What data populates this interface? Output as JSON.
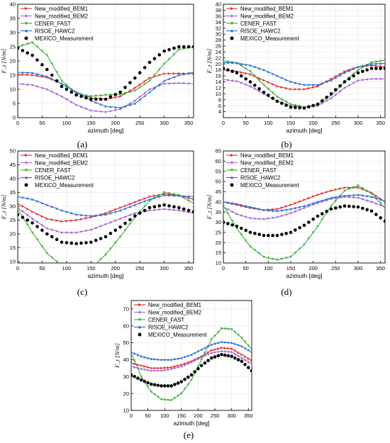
{
  "figure": {
    "panel_labels": [
      "(a)",
      "(b)",
      "(c)",
      "(d)",
      "(e)"
    ],
    "legend_entries": [
      "New_modified_BEM1",
      "New_modified_BEM2",
      "CENER_FAST",
      "RISOE_HAWC2",
      "MEXICO_Measurement"
    ],
    "series_colors": {
      "New_modified_BEM1": "#e8231f",
      "New_modified_BEM2": "#a468dc",
      "CENER_FAST": "#3cae3a",
      "RISOE_HAWC2": "#2e6fd6",
      "MEXICO_Measurement": "#000000"
    },
    "series_markers": {
      "New_modified_BEM1": "triangle-right",
      "New_modified_BEM2": "diamond",
      "CENER_FAST": "triangle-down",
      "RISOE_HAWC2": "triangle-up",
      "MEXICO_Measurement": "circle"
    }
  },
  "chart_data": [
    {
      "panel": "(a)",
      "type": "line",
      "xlabel": "azimuth [deg]",
      "ylabel": "F_t [N/m]",
      "xlim": [
        0,
        360
      ],
      "ylim": [
        0,
        40
      ],
      "xticks": [
        0,
        50,
        100,
        150,
        200,
        250,
        300,
        350
      ],
      "yticks": [
        0,
        5,
        10,
        15,
        20,
        25,
        30,
        35,
        40
      ],
      "legend": "top-left",
      "x": [
        0,
        30,
        60,
        90,
        120,
        150,
        180,
        210,
        240,
        270,
        300,
        330,
        360
      ],
      "series": [
        {
          "name": "New_modified_BEM1",
          "values": [
            15.2,
            15.0,
            14.2,
            12.0,
            9.0,
            7.0,
            6.5,
            7.5,
            10.5,
            14.0,
            15.5,
            15.6,
            15.5
          ]
        },
        {
          "name": "New_modified_BEM2",
          "values": [
            12.0,
            11.5,
            10.0,
            7.5,
            4.5,
            2.5,
            2.0,
            3.0,
            6.0,
            10.0,
            12.0,
            12.2,
            12.0
          ]
        },
        {
          "name": "CENER_FAST",
          "values": [
            25.0,
            26.5,
            22.0,
            13.0,
            8.5,
            7.5,
            8.0,
            8.2,
            9.5,
            13.0,
            19.0,
            24.0,
            25.0
          ]
        },
        {
          "name": "RISOE_HAWC2",
          "values": [
            16.0,
            15.8,
            14.5,
            12.0,
            9.0,
            6.0,
            4.0,
            3.5,
            5.0,
            9.0,
            13.0,
            15.0,
            16.0
          ]
        },
        {
          "name": "MEXICO_Measurement",
          "values": [
            24.5,
            22.0,
            17.0,
            11.0,
            8.0,
            6.5,
            6.5,
            9.0,
            14.0,
            19.5,
            23.5,
            25.0,
            25.0
          ]
        }
      ]
    },
    {
      "panel": "(b)",
      "type": "line",
      "xlabel": "azimuth [deg]",
      "ylabel": "F_t [N/m]",
      "xlim": [
        0,
        360
      ],
      "ylim": [
        2,
        40
      ],
      "xticks": [
        0,
        50,
        100,
        150,
        200,
        250,
        300,
        350
      ],
      "yticks": [
        4,
        6,
        8,
        10,
        12,
        14,
        16,
        18,
        20,
        22,
        24,
        26,
        28,
        30,
        32,
        34,
        36,
        38,
        40
      ],
      "legend": "top-left",
      "x": [
        0,
        30,
        60,
        90,
        120,
        150,
        180,
        210,
        240,
        270,
        300,
        330,
        360
      ],
      "series": [
        {
          "name": "New_modified_BEM1",
          "values": [
            18.0,
            17.5,
            16.5,
            14.5,
            12.5,
            11.5,
            11.5,
            12.5,
            15.0,
            17.5,
            19.0,
            19.5,
            19.0
          ]
        },
        {
          "name": "New_modified_BEM2",
          "values": [
            14.8,
            14.2,
            12.5,
            10.0,
            7.5,
            6.0,
            5.5,
            6.0,
            8.5,
            12.0,
            14.5,
            15.0,
            15.0
          ]
        },
        {
          "name": "CENER_FAST",
          "values": [
            21.0,
            20.3,
            17.5,
            13.0,
            9.0,
            6.5,
            5.5,
            6.5,
            9.5,
            14.0,
            18.0,
            20.5,
            21.2
          ]
        },
        {
          "name": "RISOE_HAWC2",
          "values": [
            20.5,
            20.3,
            19.5,
            18.0,
            16.0,
            14.0,
            13.0,
            13.0,
            14.5,
            17.0,
            19.0,
            20.0,
            20.2
          ]
        },
        {
          "name": "MEXICO_Measurement",
          "values": [
            18.5,
            17.0,
            14.0,
            10.5,
            7.5,
            5.5,
            5.2,
            6.5,
            10.0,
            14.0,
            17.0,
            18.5,
            18.5
          ]
        }
      ]
    },
    {
      "panel": "(c)",
      "type": "line",
      "xlabel": "azimuth [deg]",
      "ylabel": "F_t [N/m]",
      "xlim": [
        0,
        360
      ],
      "ylim": [
        9.5,
        50
      ],
      "xticks": [
        0,
        50,
        100,
        150,
        200,
        250,
        300,
        350
      ],
      "yticks": [
        10,
        15,
        20,
        25,
        30,
        35,
        40,
        45,
        50
      ],
      "legend": "top-left",
      "x": [
        0,
        30,
        60,
        90,
        120,
        150,
        180,
        210,
        240,
        270,
        300,
        330,
        360
      ],
      "series": [
        {
          "name": "New_modified_BEM1",
          "values": [
            31.0,
            28.0,
            25.5,
            24.5,
            25.0,
            26.0,
            27.5,
            29.5,
            31.5,
            33.5,
            34.5,
            34.0,
            32.5
          ]
        },
        {
          "name": "New_modified_BEM2",
          "values": [
            29.5,
            25.5,
            22.0,
            20.5,
            20.5,
            21.5,
            23.5,
            25.5,
            27.5,
            28.5,
            29.0,
            28.5,
            27.5
          ]
        },
        {
          "name": "CENER_FAST",
          "values": [
            29.0,
            20.5,
            13.0,
            8.5,
            6.5,
            7.5,
            12.5,
            19.0,
            26.0,
            32.0,
            35.0,
            34.0,
            31.0
          ]
        },
        {
          "name": "RISOE_HAWC2",
          "values": [
            33.5,
            32.5,
            30.5,
            28.5,
            27.0,
            26.5,
            27.0,
            28.5,
            30.5,
            32.5,
            34.0,
            33.8,
            33.5
          ]
        },
        {
          "name": "MEXICO_Measurement",
          "values": [
            27.0,
            24.0,
            20.0,
            17.0,
            16.5,
            17.0,
            19.0,
            22.5,
            26.5,
            29.5,
            30.5,
            29.5,
            28.0
          ]
        }
      ]
    },
    {
      "panel": "(d)",
      "type": "line",
      "xlabel": "azimuth [deg]",
      "ylabel": "F_t [N/m]",
      "xlim": [
        0,
        360
      ],
      "ylim": [
        10,
        65
      ],
      "xticks": [
        0,
        50,
        100,
        150,
        200,
        250,
        300,
        350
      ],
      "yticks": [
        10,
        15,
        20,
        25,
        30,
        35,
        40,
        45,
        50,
        55,
        60,
        65
      ],
      "legend": "top-left",
      "x": [
        0,
        30,
        60,
        90,
        120,
        150,
        180,
        210,
        240,
        270,
        300,
        330,
        360
      ],
      "series": [
        {
          "name": "New_modified_BEM1",
          "values": [
            40.0,
            38.5,
            37.0,
            36.0,
            36.5,
            38.5,
            41.0,
            43.5,
            45.5,
            47.0,
            47.0,
            44.5,
            40.0
          ]
        },
        {
          "name": "New_modified_BEM2",
          "values": [
            37.5,
            34.0,
            32.0,
            31.5,
            32.5,
            34.5,
            37.0,
            39.5,
            41.5,
            42.5,
            42.0,
            40.0,
            37.5
          ]
        },
        {
          "name": "CENER_FAST",
          "values": [
            38.0,
            27.0,
            18.0,
            13.0,
            11.5,
            13.0,
            19.0,
            28.0,
            38.0,
            45.5,
            48.0,
            44.0,
            37.0
          ]
        },
        {
          "name": "RISOE_HAWC2",
          "values": [
            40.0,
            39.0,
            37.5,
            36.0,
            35.5,
            36.5,
            38.0,
            40.0,
            42.0,
            43.0,
            43.5,
            42.5,
            40.5
          ]
        },
        {
          "name": "MEXICO_Measurement",
          "values": [
            30.0,
            28.0,
            25.0,
            23.5,
            23.5,
            25.0,
            28.5,
            33.0,
            36.5,
            38.0,
            37.5,
            35.5,
            30.5
          ]
        }
      ]
    },
    {
      "panel": "(e)",
      "type": "line",
      "xlabel": "azimuth [deg]",
      "ylabel": "F_t [N/m]",
      "xlim": [
        0,
        360
      ],
      "ylim": [
        10,
        75
      ],
      "xticks": [
        0,
        50,
        100,
        150,
        200,
        250,
        300,
        350
      ],
      "yticks": [
        10,
        20,
        30,
        40,
        50,
        60,
        70
      ],
      "legend": "top-left",
      "x": [
        0,
        30,
        60,
        90,
        120,
        150,
        180,
        210,
        240,
        270,
        300,
        330,
        360
      ],
      "series": [
        {
          "name": "New_modified_BEM1",
          "values": [
            38.0,
            36.5,
            35.0,
            35.0,
            35.5,
            37.0,
            39.0,
            42.0,
            45.5,
            47.0,
            46.5,
            43.0,
            39.5
          ]
        },
        {
          "name": "New_modified_BEM2",
          "values": [
            36.0,
            34.5,
            33.5,
            33.5,
            34.5,
            36.0,
            38.5,
            41.5,
            44.0,
            45.0,
            44.5,
            41.0,
            37.5
          ]
        },
        {
          "name": "CENER_FAST",
          "values": [
            44.0,
            30.0,
            21.0,
            16.5,
            16.0,
            20.0,
            28.0,
            40.0,
            52.0,
            58.5,
            58.0,
            53.0,
            46.0
          ]
        },
        {
          "name": "RISOE_HAWC2",
          "values": [
            44.5,
            42.0,
            40.5,
            40.0,
            40.0,
            41.0,
            43.0,
            46.0,
            49.0,
            50.5,
            50.0,
            48.0,
            44.5
          ]
        },
        {
          "name": "MEXICO_Measurement",
          "values": [
            31.0,
            28.0,
            25.5,
            24.5,
            24.5,
            27.0,
            31.0,
            36.5,
            41.0,
            43.0,
            42.0,
            39.0,
            33.5
          ]
        }
      ]
    }
  ]
}
